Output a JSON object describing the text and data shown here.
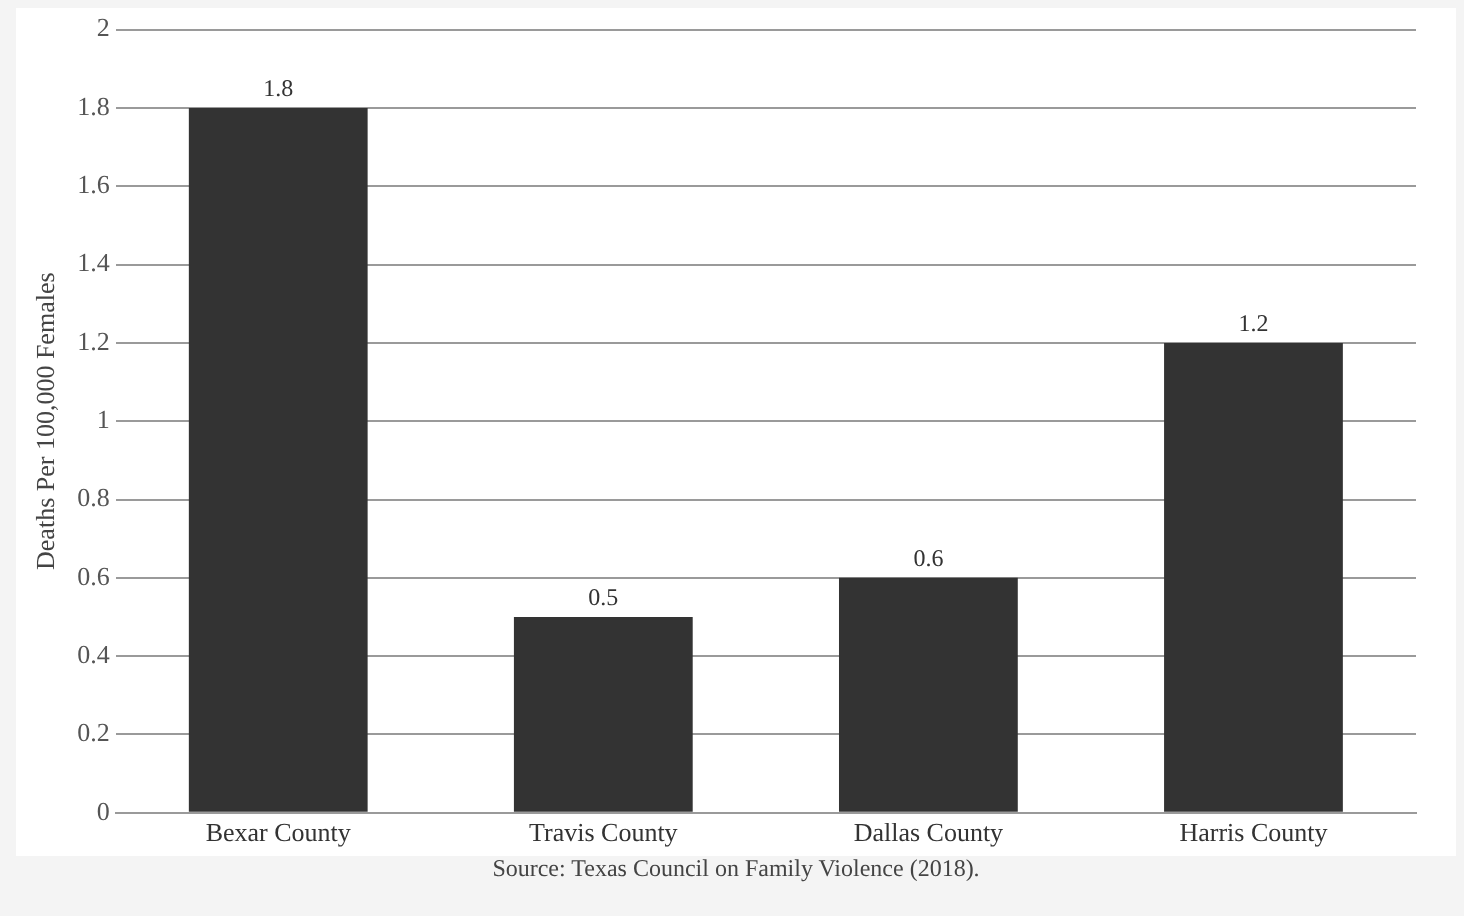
{
  "chart_data": {
    "type": "bar",
    "ylabel": "Deaths Per 100,000 Females",
    "categories": [
      "Bexar County",
      "Travis County",
      "Dallas County",
      "Harris County"
    ],
    "values": [
      1.8,
      0.5,
      0.6,
      1.2
    ],
    "color": "#333333",
    "ylim": [
      0,
      2
    ],
    "yticks": [
      0,
      0.2,
      0.4,
      0.6,
      0.8,
      1,
      1.2,
      1.4,
      1.6,
      1.8,
      2
    ],
    "grid": "y",
    "legend": false,
    "data_labels": true,
    "annotations": [
      "Source: Texas Council on Family Violence (2018)."
    ]
  }
}
